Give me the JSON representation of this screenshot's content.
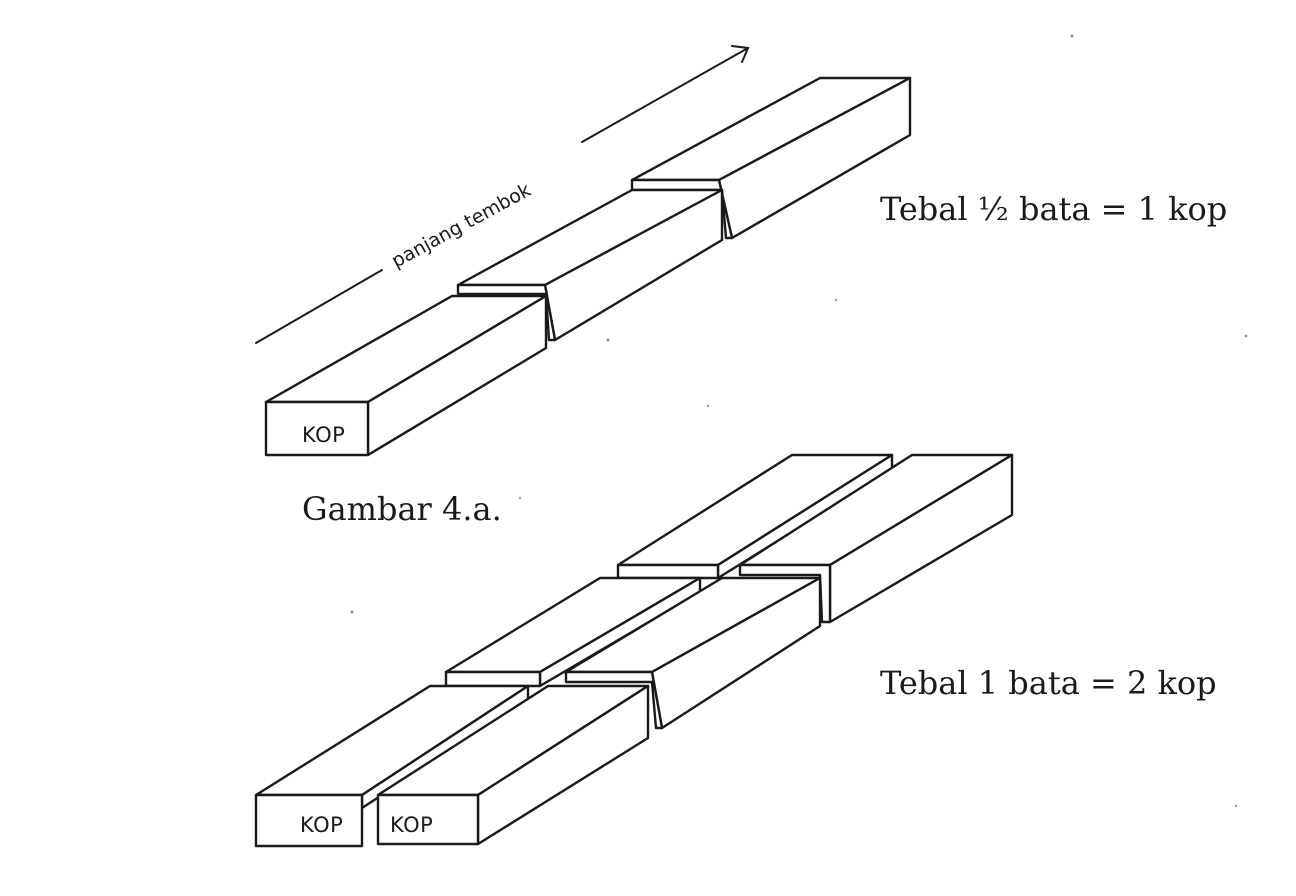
{
  "arrow": {
    "label": "panjang tembok"
  },
  "figure_a": {
    "caption": "Gambar 4.a.",
    "equation": "Tebal ½ bata = 1 kop",
    "brick_label": "KOP"
  },
  "figure_b": {
    "equation": "Tebal 1 bata  =  2 kop",
    "brick_labels": [
      "KOP",
      "KOP"
    ]
  },
  "colors": {
    "ink": "#1a1a1a",
    "paper": "#ffffff"
  }
}
